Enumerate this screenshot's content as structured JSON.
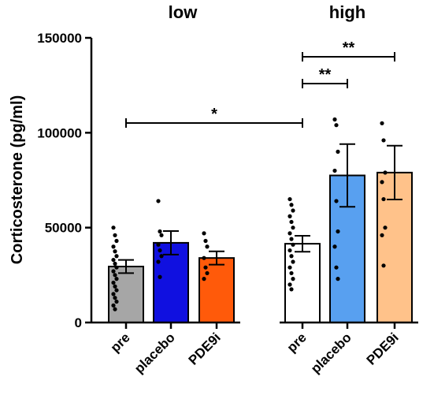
{
  "chart_data": {
    "type": "bar",
    "title": "",
    "xlabel": "",
    "ylabel": "Corticosterone (pg/ml)",
    "ylim": [
      0,
      150000
    ],
    "yticks": [
      "0",
      "50000",
      "100000",
      "150000"
    ],
    "ytick_values": [
      0,
      50000,
      100000,
      150000
    ],
    "grid": false,
    "groups": [
      {
        "label": "low",
        "categories": [
          "pre",
          "placebo",
          "PDE9i"
        ]
      },
      {
        "label": "high",
        "categories": [
          "pre",
          "placebo",
          "PDE9i"
        ]
      }
    ],
    "bars": [
      {
        "category": "pre",
        "group": "low",
        "mean": 29500,
        "sem": 3500,
        "color": "#A6A6A6",
        "points": [
          50000,
          46000,
          43000,
          40000,
          37500,
          35000,
          33000,
          31000,
          29000,
          27000,
          25000,
          23000,
          21000,
          19000,
          17000,
          15000,
          13000,
          11000,
          9000,
          7000
        ]
      },
      {
        "category": "placebo",
        "group": "low",
        "mean": 42000,
        "sem": 6200,
        "color": "#1010E0",
        "points": [
          64000,
          48000,
          46000,
          41000,
          38000,
          35000,
          32000,
          24000
        ]
      },
      {
        "category": "PDE9i",
        "group": "low",
        "mean": 34000,
        "sem": 3500,
        "color": "#FF5A0A",
        "points": [
          47000,
          43000,
          40000,
          34000,
          29000,
          26000,
          23000
        ]
      },
      {
        "category": "pre",
        "group": "high",
        "mean": 41500,
        "sem": 4200,
        "color": "#FFFFFF",
        "points": [
          65000,
          62000,
          59000,
          56000,
          53000,
          50000,
          47000,
          44000,
          41000,
          38000,
          35000,
          32000,
          29000,
          26000,
          23000,
          20000,
          17500
        ]
      },
      {
        "category": "placebo",
        "group": "high",
        "mean": 77500,
        "sem": 16500,
        "color": "#58A0F0",
        "points": [
          107000,
          104000,
          90000,
          80000,
          64000,
          48000,
          40000,
          29000,
          23000
        ]
      },
      {
        "category": "PDE9i",
        "group": "high",
        "mean": 79000,
        "sem": 14200,
        "color": "#FFC28A",
        "points": [
          105000,
          96000,
          79000,
          74000,
          65000,
          50000,
          46000,
          30000
        ]
      }
    ],
    "significance": [
      {
        "from": 0,
        "to": 3,
        "level": 150000,
        "label": "*"
      },
      {
        "from": 3,
        "to": 4,
        "level": 185000,
        "label": "**"
      },
      {
        "from": 3,
        "to": 5,
        "level": 210000,
        "label": "**"
      }
    ]
  }
}
